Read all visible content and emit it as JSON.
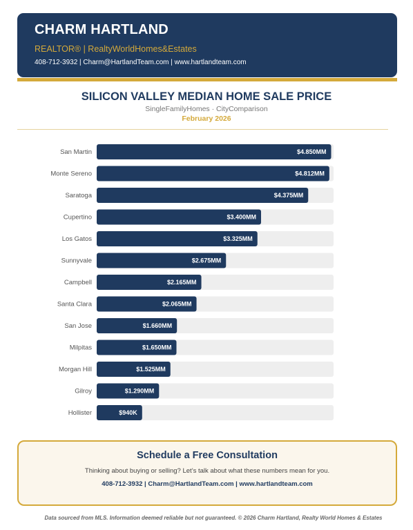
{
  "header": {
    "name": "CHARM HARTLAND",
    "role": "REALTOR® | RealtyWorldHomes&Estates",
    "contact": "408-712-3932 | Charm@HartlandTeam.com | www.hartlandteam.com"
  },
  "colors": {
    "navy": "#1f3a5f",
    "gold": "#d4a93a",
    "track": "#eeeeee"
  },
  "chart_data": {
    "type": "bar",
    "orientation": "horizontal",
    "title": "SILICON VALLEY MEDIAN HOME SALE PRICE",
    "subtitle": "SingleFamilyHomes · CityComparison",
    "date": "February 2026",
    "unit": "$MM",
    "xlim": [
      0,
      4.9
    ],
    "categories": [
      "San Martin",
      "Monte Sereno",
      "Saratoga",
      "Cupertino",
      "Los Gatos",
      "Sunnyvale",
      "Campbell",
      "Santa Clara",
      "San Jose",
      "Milpitas",
      "Morgan Hill",
      "Gilroy",
      "Hollister"
    ],
    "values": [
      4.85,
      4.812,
      4.375,
      3.4,
      3.325,
      2.675,
      2.165,
      2.065,
      1.66,
      1.65,
      1.525,
      1.29,
      0.94
    ],
    "labels": [
      "$4.850MM",
      "$4.812MM",
      "$4.375MM",
      "$3.400MM",
      "$3.325MM",
      "$2.675MM",
      "$2.165MM",
      "$2.065MM",
      "$1.660MM",
      "$1.650MM",
      "$1.525MM",
      "$1.290MM",
      "$940K"
    ]
  },
  "cta": {
    "heading": "Schedule a Free Consultation",
    "description": "Thinking about buying or selling? Let’s talk about what these numbers mean for you.",
    "contact": "408-712-3932 | Charm@HartlandTeam.com | www.hartlandteam.com"
  },
  "footer": "Data sourced from MLS. Information deemed reliable but not guaranteed. © 2026 Charm Hartland, Realty World Homes & Estates"
}
